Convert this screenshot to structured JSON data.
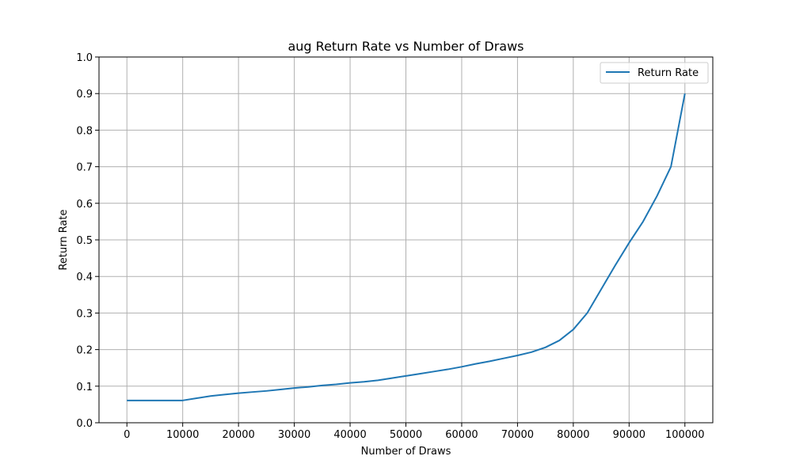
{
  "chart_data": {
    "type": "line",
    "title": "aug Return Rate vs Number of Draws",
    "xlabel": "Number of Draws",
    "ylabel": "Return Rate",
    "xlim": [
      -5000,
      105000
    ],
    "ylim": [
      0.0,
      1.0
    ],
    "x_ticks": [
      0,
      10000,
      20000,
      30000,
      40000,
      50000,
      60000,
      70000,
      80000,
      90000,
      100000
    ],
    "x_tick_labels": [
      "0",
      "10000",
      "20000",
      "30000",
      "40000",
      "50000",
      "60000",
      "70000",
      "80000",
      "90000",
      "100000"
    ],
    "y_ticks": [
      0.0,
      0.1,
      0.2,
      0.3,
      0.4,
      0.5,
      0.6,
      0.7,
      0.8,
      0.9,
      1.0
    ],
    "y_tick_labels": [
      "0.0",
      "0.1",
      "0.2",
      "0.3",
      "0.4",
      "0.5",
      "0.6",
      "0.7",
      "0.8",
      "0.9",
      "1.0"
    ],
    "grid": true,
    "legend_position": "top-right",
    "series": [
      {
        "name": "Return Rate",
        "color": "#1f77b4",
        "x": [
          0,
          2500,
          5000,
          7500,
          10000,
          12500,
          15000,
          17500,
          20000,
          22500,
          25000,
          27500,
          30000,
          32500,
          35000,
          37500,
          40000,
          42500,
          45000,
          47500,
          50000,
          52500,
          55000,
          57500,
          60000,
          62500,
          65000,
          67500,
          70000,
          72500,
          75000,
          77500,
          80000,
          82500,
          85000,
          87500,
          90000,
          92500,
          95000,
          97500,
          100000
        ],
        "y": [
          0.061,
          0.061,
          0.061,
          0.061,
          0.061,
          0.067,
          0.073,
          0.077,
          0.081,
          0.084,
          0.087,
          0.091,
          0.095,
          0.098,
          0.102,
          0.105,
          0.109,
          0.112,
          0.116,
          0.122,
          0.128,
          0.134,
          0.14,
          0.146,
          0.153,
          0.161,
          0.168,
          0.176,
          0.184,
          0.193,
          0.206,
          0.225,
          0.255,
          0.3,
          0.365,
          0.43,
          0.492,
          0.55,
          0.62,
          0.7,
          0.9
        ]
      }
    ]
  }
}
